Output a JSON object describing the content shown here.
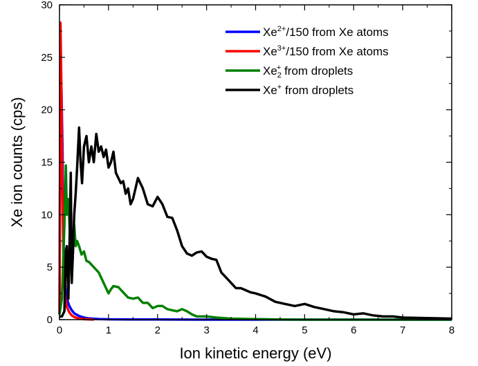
{
  "chart_data": {
    "type": "line",
    "title": "",
    "xlabel": "Ion kinetic energy (eV)",
    "ylabel": "Xe ion counts (cps)",
    "xlim": [
      0,
      8
    ],
    "ylim": [
      0,
      30
    ],
    "xticks": [
      0,
      1,
      2,
      3,
      4,
      5,
      6,
      7,
      8
    ],
    "yticks": [
      0,
      5,
      10,
      15,
      20,
      25,
      30
    ],
    "grid": false,
    "legend_position": "top-right",
    "series": [
      {
        "name": "Xe2+/150 from Xe atoms",
        "legend": {
          "base": "Xe",
          "sup": "2+",
          "sub": "",
          "rest": "/150 from Xe atoms"
        },
        "color": "#0000ff",
        "x": [
          0.0,
          0.02,
          0.04,
          0.06,
          0.08,
          0.1,
          0.12,
          0.15,
          0.2,
          0.25,
          0.3,
          0.4,
          0.5,
          0.6,
          0.8,
          1.0,
          1.5,
          2.0,
          3.0,
          4.0,
          5.0,
          6.0,
          7.0,
          8.0
        ],
        "y": [
          0.5,
          23.5,
          22.0,
          16.5,
          8.0,
          4.5,
          3.0,
          2.0,
          1.3,
          0.9,
          0.6,
          0.35,
          0.2,
          0.12,
          0.06,
          0.03,
          0.02,
          0.01,
          0.0,
          0.0,
          0.0,
          0.0,
          0.0,
          0.0
        ]
      },
      {
        "name": "Xe3+/150 from Xe atoms",
        "legend": {
          "base": "Xe",
          "sup": "3+",
          "sub": "",
          "rest": "/150 from Xe atoms"
        },
        "color": "#ff0000",
        "x": [
          0.0,
          0.02,
          0.04,
          0.06,
          0.08,
          0.1,
          0.12,
          0.15,
          0.2,
          0.25,
          0.3,
          0.4,
          0.5,
          0.7
        ],
        "y": [
          0.5,
          28.3,
          22.0,
          12.0,
          6.0,
          3.2,
          2.0,
          1.2,
          0.7,
          0.4,
          0.25,
          0.1,
          0.05,
          0.0
        ]
      },
      {
        "name": "Xe2+ from droplets",
        "legend": {
          "base": "Xe",
          "sup": "+",
          "sub": "2",
          "rest": " from droplets"
        },
        "color": "#008000",
        "x": [
          0.0,
          0.05,
          0.1,
          0.13,
          0.15,
          0.18,
          0.22,
          0.25,
          0.28,
          0.3,
          0.33,
          0.36,
          0.4,
          0.45,
          0.5,
          0.55,
          0.6,
          0.7,
          0.8,
          0.9,
          1.0,
          1.05,
          1.1,
          1.2,
          1.3,
          1.4,
          1.5,
          1.6,
          1.7,
          1.8,
          1.9,
          2.0,
          2.1,
          2.2,
          2.3,
          2.4,
          2.5,
          2.6,
          2.7,
          2.8,
          3.0,
          3.2,
          3.5,
          4.0,
          4.5,
          5.0,
          6.0,
          7.0,
          8.0
        ],
        "y": [
          0.5,
          2.0,
          9.0,
          14.7,
          10.0,
          11.5,
          7.5,
          4.0,
          7.0,
          9.0,
          7.0,
          7.5,
          7.0,
          6.2,
          6.5,
          5.6,
          5.5,
          5.0,
          4.5,
          3.5,
          2.5,
          2.9,
          3.2,
          3.1,
          2.6,
          2.1,
          2.0,
          2.1,
          1.6,
          1.6,
          1.1,
          1.3,
          1.3,
          1.0,
          0.9,
          0.8,
          1.0,
          0.8,
          0.5,
          0.3,
          0.3,
          0.2,
          0.1,
          0.05,
          0.02,
          0.0,
          0.0,
          0.0,
          0.0
        ]
      },
      {
        "name": "Xe+ from droplets",
        "legend": {
          "base": "Xe",
          "sup": "+",
          "sub": "",
          "rest": " from droplets"
        },
        "color": "#000000",
        "x": [
          0.0,
          0.05,
          0.1,
          0.13,
          0.15,
          0.18,
          0.2,
          0.23,
          0.25,
          0.28,
          0.3,
          0.33,
          0.36,
          0.4,
          0.43,
          0.46,
          0.5,
          0.55,
          0.6,
          0.65,
          0.7,
          0.75,
          0.8,
          0.85,
          0.9,
          0.95,
          1.0,
          1.05,
          1.1,
          1.15,
          1.2,
          1.25,
          1.3,
          1.35,
          1.4,
          1.45,
          1.5,
          1.55,
          1.6,
          1.7,
          1.8,
          1.9,
          2.0,
          2.1,
          2.2,
          2.3,
          2.4,
          2.5,
          2.6,
          2.7,
          2.8,
          2.9,
          3.0,
          3.1,
          3.2,
          3.3,
          3.4,
          3.5,
          3.6,
          3.7,
          3.8,
          3.9,
          4.0,
          4.2,
          4.4,
          4.6,
          4.8,
          5.0,
          5.2,
          5.4,
          5.6,
          5.8,
          6.0,
          6.2,
          6.4,
          6.6,
          6.8,
          7.0,
          7.5,
          8.0
        ],
        "y": [
          0.3,
          0.3,
          0.8,
          6.5,
          7.0,
          2.0,
          6.0,
          14.0,
          3.5,
          7.0,
          10.0,
          12.0,
          14.5,
          18.3,
          15.0,
          13.0,
          16.5,
          17.5,
          15.0,
          16.5,
          15.0,
          17.7,
          16.0,
          16.5,
          15.5,
          16.2,
          14.5,
          15.0,
          16.0,
          14.0,
          13.5,
          13.0,
          13.2,
          12.0,
          12.5,
          11.0,
          11.5,
          12.5,
          13.5,
          12.5,
          11.0,
          10.8,
          11.7,
          11.0,
          9.8,
          9.7,
          8.5,
          7.0,
          6.3,
          6.1,
          6.4,
          6.5,
          6.0,
          5.8,
          5.7,
          4.5,
          4.0,
          3.5,
          3.0,
          3.0,
          2.8,
          2.6,
          2.5,
          2.2,
          1.7,
          1.5,
          1.3,
          1.5,
          1.2,
          1.0,
          0.8,
          0.7,
          0.5,
          0.6,
          0.4,
          0.3,
          0.3,
          0.2,
          0.15,
          0.1
        ]
      }
    ]
  }
}
